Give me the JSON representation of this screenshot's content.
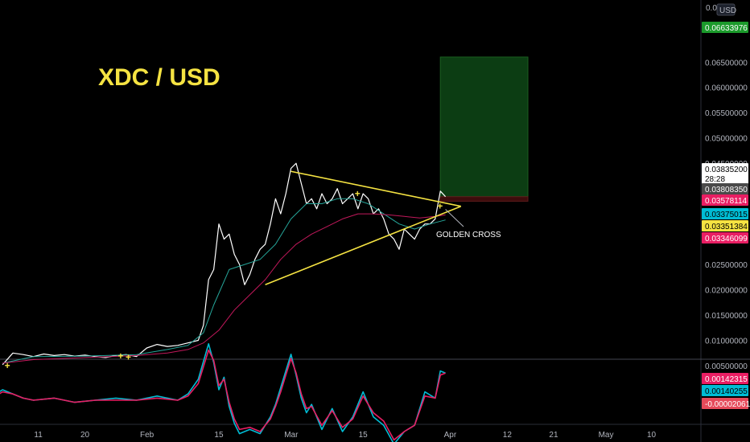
{
  "chart_data": [
    {
      "type": "line",
      "title": "XDC / USD",
      "currency": "USD",
      "yscale": "linear",
      "ylim": [
        0,
        0.072
      ],
      "grid": false,
      "x_ticks": [
        {
          "d": 11,
          "label": "11"
        },
        {
          "d": 20,
          "label": "20"
        },
        {
          "d": 32,
          "label": "Feb"
        },
        {
          "d": 46,
          "label": "15"
        },
        {
          "d": 60,
          "label": "Mar"
        },
        {
          "d": 74,
          "label": "15"
        },
        {
          "d": 91,
          "label": "Apr"
        },
        {
          "d": 102,
          "label": "12"
        },
        {
          "d": 111,
          "label": "21"
        },
        {
          "d": 121,
          "label": "May"
        },
        {
          "d": 130,
          "label": "10"
        }
      ],
      "y_ticks": [
        {
          "v": 0.065,
          "label": "0.06500000"
        },
        {
          "v": 0.06,
          "label": "0.06000000"
        },
        {
          "v": 0.055,
          "label": "0.05500000"
        },
        {
          "v": 0.05,
          "label": "0.05000000"
        },
        {
          "v": 0.045,
          "label": "0.04500000"
        },
        {
          "v": 0.04,
          "label": "0.04000000"
        },
        {
          "v": 0.025,
          "label": "0.02500000"
        },
        {
          "v": 0.02,
          "label": "0.02000000"
        },
        {
          "v": 0.015,
          "label": "0.01500000"
        },
        {
          "v": 0.01,
          "label": "0.01000000"
        },
        {
          "v": 0.005,
          "label": "0.00500000"
        }
      ],
      "top_tick_label": "0.07",
      "series": [
        {
          "color": "#ffffff",
          "x": [
            4,
            6,
            8,
            10,
            12,
            14,
            16,
            18,
            20,
            22,
            24,
            26,
            28,
            30,
            32,
            34,
            36,
            38,
            40,
            42,
            43,
            44,
            45,
            46,
            47,
            48,
            49,
            50,
            51,
            52,
            53,
            54,
            55,
            56,
            57,
            58,
            59,
            60,
            61,
            62,
            63,
            64,
            65,
            66,
            67,
            68,
            69,
            70,
            71,
            72,
            73,
            74,
            75,
            76,
            77,
            78,
            79,
            80,
            81,
            82,
            83,
            84,
            85,
            86,
            87,
            88,
            89,
            90
          ],
          "y": [
            0.0052,
            0.0075,
            0.0072,
            0.0068,
            0.0073,
            0.007,
            0.0072,
            0.0069,
            0.0071,
            0.0068,
            0.0066,
            0.007,
            0.0072,
            0.0068,
            0.0085,
            0.0092,
            0.0088,
            0.009,
            0.0095,
            0.01,
            0.013,
            0.022,
            0.024,
            0.033,
            0.03,
            0.031,
            0.027,
            0.025,
            0.021,
            0.023,
            0.026,
            0.028,
            0.029,
            0.033,
            0.038,
            0.035,
            0.039,
            0.044,
            0.045,
            0.041,
            0.037,
            0.038,
            0.036,
            0.039,
            0.037,
            0.038,
            0.04,
            0.037,
            0.038,
            0.039,
            0.036,
            0.039,
            0.038,
            0.035,
            0.036,
            0.034,
            0.031,
            0.03,
            0.028,
            0.032,
            0.031,
            0.03,
            0.032,
            0.033,
            0.033,
            0.034,
            0.0395,
            0.0384
          ]
        },
        {
          "color": "#26a69a",
          "x": [
            4,
            10,
            20,
            30,
            36,
            40,
            43,
            45,
            48,
            51,
            54,
            57,
            60,
            63,
            66,
            69,
            72,
            75,
            78,
            81,
            84,
            87,
            90
          ],
          "y": [
            0.0055,
            0.0068,
            0.0069,
            0.0072,
            0.0082,
            0.009,
            0.0115,
            0.017,
            0.024,
            0.025,
            0.026,
            0.029,
            0.034,
            0.037,
            0.037,
            0.038,
            0.038,
            0.037,
            0.035,
            0.033,
            0.032,
            0.033,
            0.0338
          ]
        },
        {
          "color": "#c2185b",
          "x": [
            4,
            10,
            20,
            30,
            36,
            40,
            43,
            46,
            49,
            52,
            55,
            58,
            61,
            64,
            67,
            70,
            73,
            76,
            79,
            82,
            85,
            88,
            90
          ],
          "y": [
            0.0055,
            0.0062,
            0.0066,
            0.007,
            0.0075,
            0.0082,
            0.0095,
            0.012,
            0.016,
            0.019,
            0.022,
            0.026,
            0.029,
            0.031,
            0.0325,
            0.034,
            0.035,
            0.035,
            0.0348,
            0.0345,
            0.0342,
            0.0345,
            0.0348
          ]
        }
      ],
      "price_tags": [
        {
          "label": "0.06633976",
          "bg": "#1b9a2b",
          "fg": "#ffffff"
        },
        {
          "label": "0.03835200",
          "sub": "28:28",
          "bg": "#ffffff",
          "fg": "#000000"
        },
        {
          "label": "0.03808350",
          "bg": "#4a4a4a",
          "fg": "#ffffff"
        },
        {
          "label": "0.03578114",
          "bg": "#e91e63",
          "fg": "#ffffff"
        },
        {
          "label": "0.03375015",
          "bg": "#00bcd4",
          "fg": "#000000"
        },
        {
          "label": "0.03351384",
          "bg": "#f5e342",
          "fg": "#000000"
        },
        {
          "label": "0.03346099",
          "bg": "#e91e63",
          "fg": "#ffffff"
        }
      ],
      "triangle": {
        "color": "#f5e342",
        "upper": [
          [
            60,
            0.0434
          ],
          [
            93,
            0.0365
          ]
        ],
        "lower": [
          [
            55,
            0.021
          ],
          [
            93,
            0.0365
          ]
        ]
      },
      "position_box": {
        "x_range": [
          89,
          106
        ],
        "profit": [
          0.0384,
          0.066
        ],
        "loss": [
          0.0375,
          0.0384
        ]
      },
      "annotations": [
        {
          "text": "GOLDEN CROSS",
          "arrow_to": [
            90,
            0.0359
          ]
        }
      ],
      "cross_markers": [
        [
          5,
          0.005
        ],
        [
          27,
          0.0069
        ],
        [
          28.5,
          0.0067
        ],
        [
          73,
          0.039
        ],
        [
          89,
          0.0365
        ]
      ]
    },
    {
      "type": "line",
      "title": "",
      "ylim": [
        -0.0025,
        0.0032
      ],
      "series": [
        {
          "color": "#00bcd4",
          "x": [
            2,
            4,
            6,
            8,
            10,
            14,
            18,
            22,
            26,
            30,
            34,
            38,
            40,
            42,
            44,
            45,
            46,
            47,
            48,
            49,
            50,
            52,
            54,
            56,
            57,
            58,
            59,
            60,
            61,
            62,
            63,
            64,
            66,
            68,
            70,
            72,
            74,
            76,
            78,
            80,
            82,
            84,
            86,
            88,
            89,
            90
          ],
          "y": [
            0.0002,
            0.0005,
            0.0003,
            0.0001,
            0.0,
            0.0001,
            -0.0001,
            0.0,
            0.0001,
            0.0,
            0.0002,
            0.0,
            0.0003,
            0.001,
            0.0027,
            0.0018,
            0.0005,
            0.0011,
            -0.0003,
            -0.0011,
            -0.0016,
            -0.0014,
            -0.0016,
            -0.0008,
            -0.0002,
            0.0006,
            0.0014,
            0.0022,
            0.0012,
            0.0001,
            -0.0006,
            -0.0002,
            -0.0014,
            -0.0004,
            -0.0015,
            -0.0008,
            0.0004,
            -0.0008,
            -0.0012,
            -0.0021,
            -0.0015,
            -0.0012,
            0.0004,
            0.0001,
            0.0014,
            0.0013
          ]
        },
        {
          "color": "#e91e63",
          "x": [
            2,
            4,
            6,
            8,
            10,
            14,
            18,
            22,
            26,
            30,
            34,
            38,
            40,
            42,
            44,
            45,
            46,
            47,
            48,
            49,
            50,
            52,
            54,
            56,
            57,
            58,
            59,
            60,
            61,
            62,
            63,
            64,
            66,
            68,
            70,
            72,
            74,
            76,
            78,
            80,
            82,
            84,
            86,
            88,
            89,
            90
          ],
          "y": [
            0.0001,
            0.0004,
            0.0003,
            0.0001,
            0.0,
            0.0001,
            -0.0001,
            0.0,
            0.0,
            0.0,
            0.0001,
            0.0,
            0.0002,
            0.0008,
            0.0024,
            0.0019,
            0.0007,
            0.001,
            -0.0001,
            -0.0009,
            -0.0014,
            -0.0013,
            -0.0015,
            -0.0009,
            -0.0003,
            0.0004,
            0.0012,
            0.002,
            0.0013,
            0.0003,
            -0.0004,
            -0.0003,
            -0.0012,
            -0.0005,
            -0.0013,
            -0.0009,
            0.0002,
            -0.0006,
            -0.001,
            -0.0019,
            -0.0015,
            -0.0012,
            0.0002,
            0.0001,
            0.0012,
            0.0013
          ]
        }
      ],
      "price_tags": [
        {
          "label": "0.00142315",
          "bg": "#e91e63",
          "fg": "#ffffff"
        },
        {
          "label": "0.00140255",
          "bg": "#00bcd4",
          "fg": "#000000"
        },
        {
          "label": "-0.00002061",
          "bg": "#e64a5a",
          "fg": "#ffffff"
        }
      ]
    }
  ]
}
